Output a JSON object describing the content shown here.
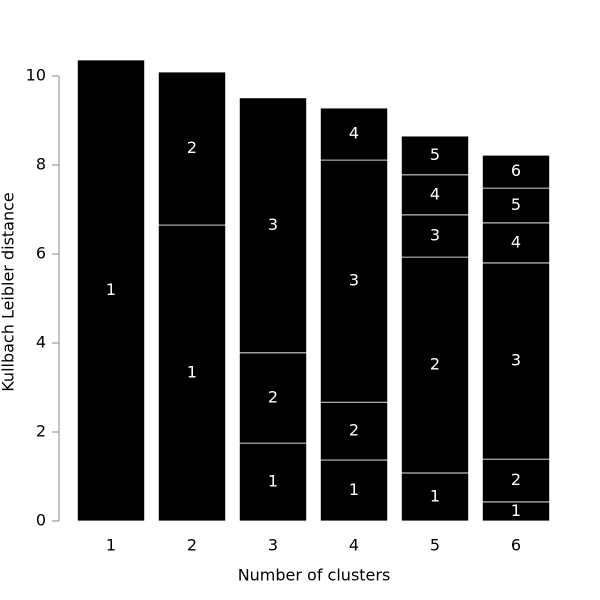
{
  "chart_data": {
    "type": "stacked_bar",
    "x_label": "Number of clusters",
    "y_label": "Kullbach Leibler distance",
    "categories": [
      "1",
      "2",
      "3",
      "4",
      "5",
      "6"
    ],
    "series": [
      {
        "name": "1",
        "color": "#000000",
        "values": [
          10.36,
          6.65,
          1.75,
          1.37,
          1.08,
          0.43
        ]
      },
      {
        "name": "2",
        "color": "#000000",
        "values": [
          null,
          3.44,
          2.03,
          1.3,
          4.85,
          0.96
        ]
      },
      {
        "name": "3",
        "color": "#000000",
        "values": [
          null,
          null,
          5.73,
          5.44,
          0.95,
          4.41
        ]
      },
      {
        "name": "4",
        "color": "#000000",
        "values": [
          null,
          null,
          null,
          1.17,
          0.9,
          0.9
        ]
      },
      {
        "name": "5",
        "color": "#000000",
        "values": [
          null,
          null,
          null,
          null,
          0.87,
          0.78
        ]
      },
      {
        "name": "6",
        "color": "#000000",
        "values": [
          null,
          null,
          null,
          null,
          null,
          0.74
        ]
      }
    ],
    "ylim": [
      0,
      10
    ],
    "yticks": [
      0,
      2,
      4,
      6,
      8,
      10
    ],
    "grid": false
  }
}
